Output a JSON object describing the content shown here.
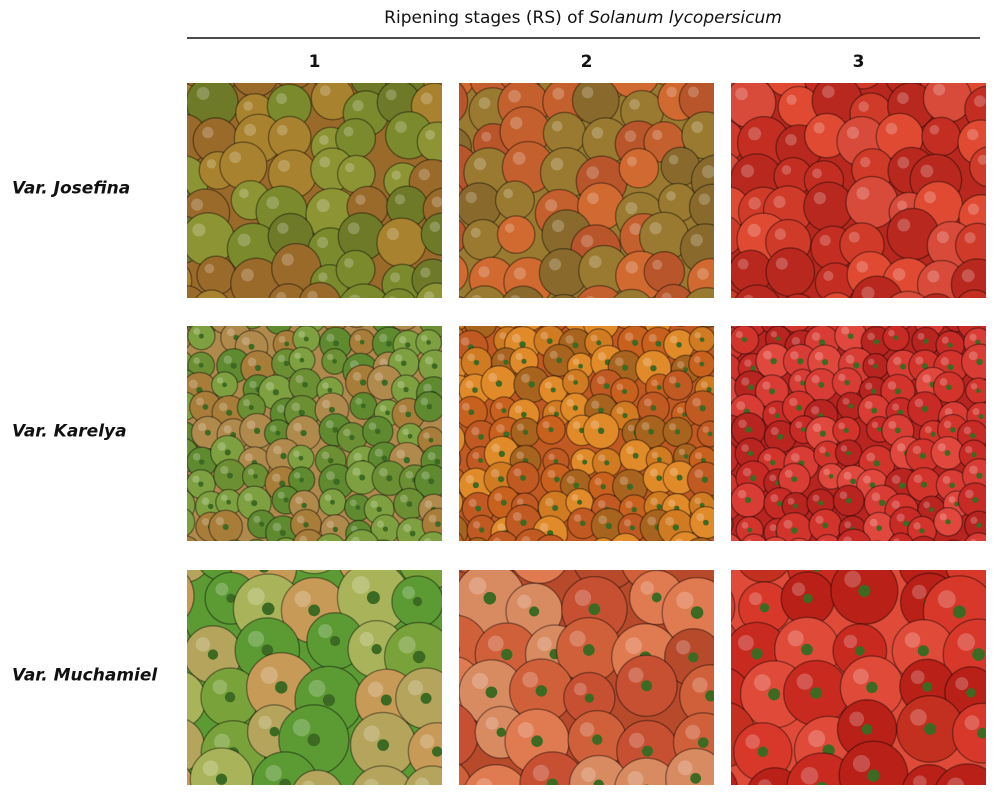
{
  "header": {
    "title_prefix": "Ripening stages (RS) of ",
    "title_species": "Solanum lycopersicum"
  },
  "columns": [
    "1",
    "2",
    "3"
  ],
  "rows": [
    "Var. Josefina",
    "Var. Karelya",
    "Var. Muchamiel"
  ]
}
